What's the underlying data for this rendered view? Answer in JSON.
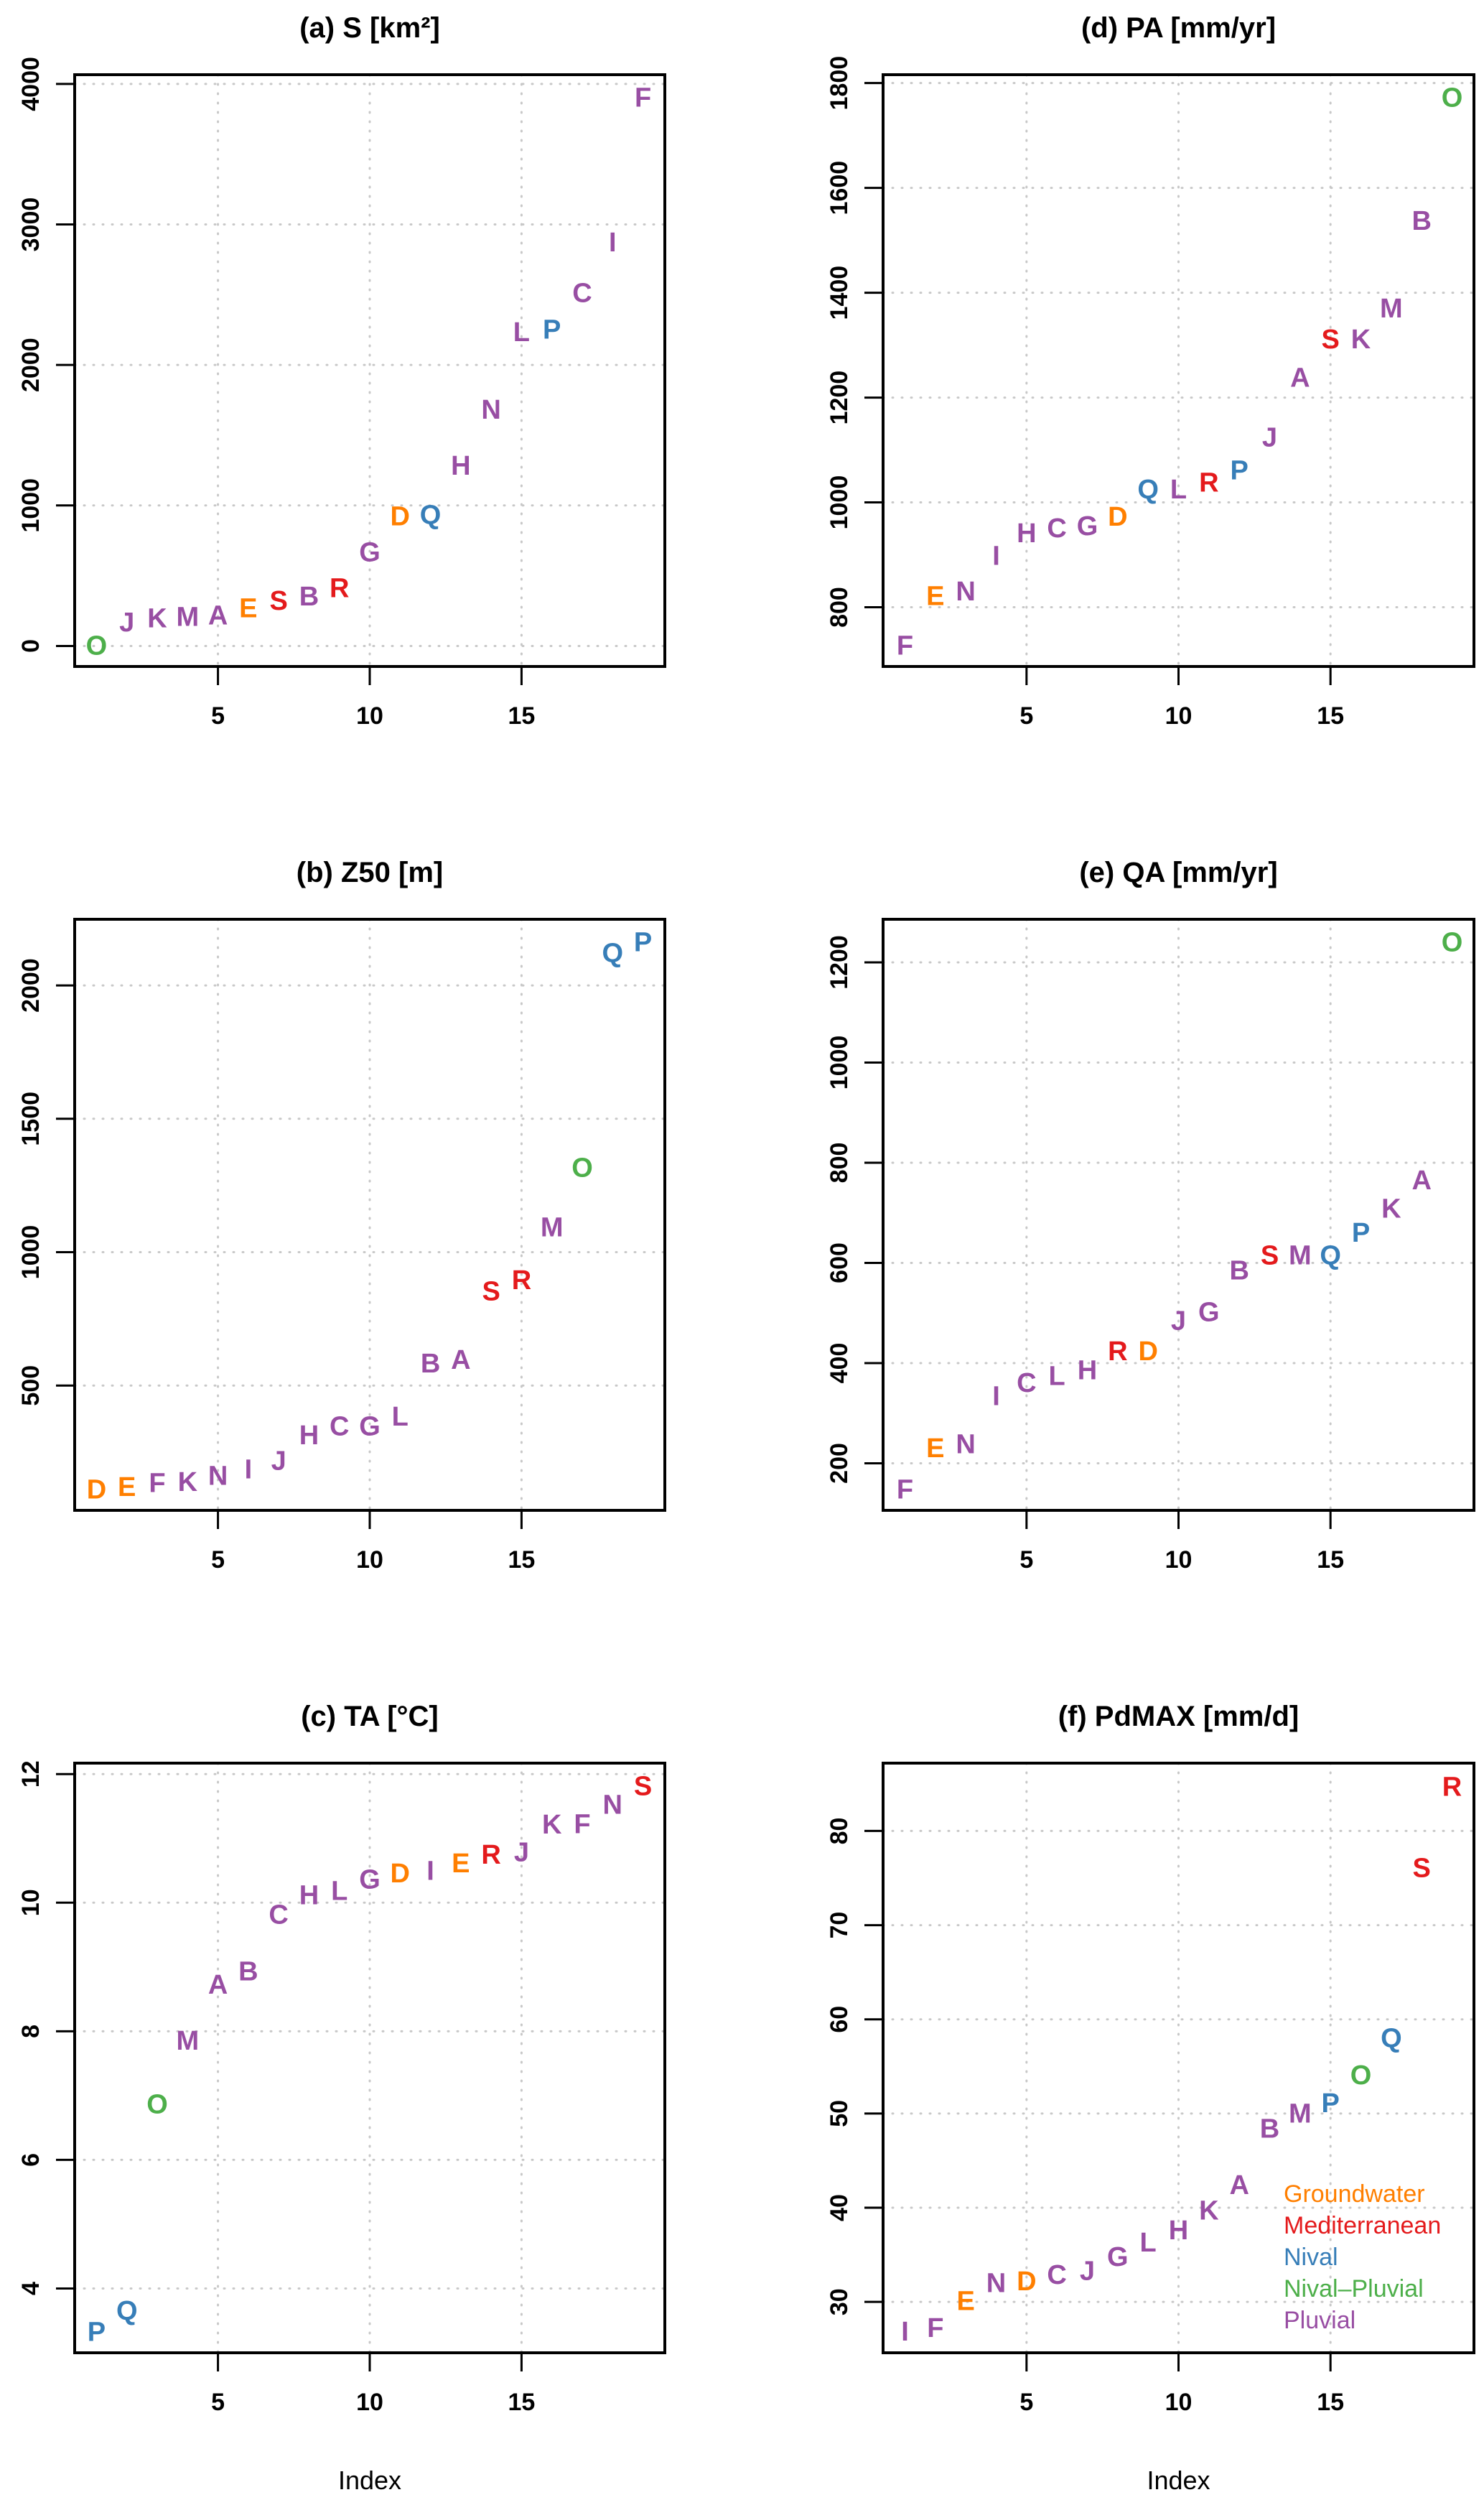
{
  "categories": {
    "Groundwater": "#FF7F00",
    "Mediterranean": "#E41A1C",
    "Nival": "#377EB8",
    "Nival-Pluvial": "#4DAF4A",
    "Pluvial": "#984EA3"
  },
  "catchment_regime": {
    "A": "Pluvial",
    "B": "Pluvial",
    "C": "Pluvial",
    "D": "Groundwater",
    "E": "Groundwater",
    "F": "Pluvial",
    "G": "Pluvial",
    "H": "Pluvial",
    "I": "Pluvial",
    "J": "Pluvial",
    "K": "Pluvial",
    "L": "Pluvial",
    "M": "Pluvial",
    "N": "Pluvial",
    "O": "Nival-Pluvial",
    "P": "Nival",
    "Q": "Nival",
    "R": "Mediterranean",
    "S": "Mediterranean"
  },
  "chart_data": [
    {
      "id": "a",
      "type": "scatter",
      "title": "(a)  S [km²]",
      "xlabel": "",
      "ylabel": "",
      "xlim": [
        0.28,
        19.72
      ],
      "ylim": [
        -146,
        4066
      ],
      "xticks": [
        5,
        10,
        15
      ],
      "yticks": [
        0,
        1000,
        2000,
        3000,
        4000
      ],
      "grid": true,
      "points": [
        {
          "x": 1,
          "label": "O",
          "y": 10
        },
        {
          "x": 2,
          "label": "J",
          "y": 175
        },
        {
          "x": 3,
          "label": "K",
          "y": 205
        },
        {
          "x": 4,
          "label": "M",
          "y": 215
        },
        {
          "x": 5,
          "label": "A",
          "y": 225
        },
        {
          "x": 6,
          "label": "E",
          "y": 275
        },
        {
          "x": 7,
          "label": "S",
          "y": 330
        },
        {
          "x": 8,
          "label": "B",
          "y": 360
        },
        {
          "x": 9,
          "label": "R",
          "y": 420
        },
        {
          "x": 10,
          "label": "G",
          "y": 675
        },
        {
          "x": 11,
          "label": "D",
          "y": 930
        },
        {
          "x": 12,
          "label": "Q",
          "y": 940
        },
        {
          "x": 13,
          "label": "H",
          "y": 1290
        },
        {
          "x": 14,
          "label": "N",
          "y": 1690
        },
        {
          "x": 15,
          "label": "L",
          "y": 2240
        },
        {
          "x": 16,
          "label": "P",
          "y": 2260
        },
        {
          "x": 17,
          "label": "C",
          "y": 2520
        },
        {
          "x": 18,
          "label": "I",
          "y": 2880
        },
        {
          "x": 19,
          "label": "F",
          "y": 3910
        }
      ]
    },
    {
      "id": "b",
      "type": "scatter",
      "title": "(b)  Z50 [m]",
      "xlabel": "",
      "ylabel": "",
      "xlim": [
        0.28,
        19.72
      ],
      "ylim": [
        32,
        2248
      ],
      "xticks": [
        5,
        10,
        15
      ],
      "yticks": [
        500,
        1000,
        1500,
        2000
      ],
      "grid": true,
      "points": [
        {
          "x": 1,
          "label": "D",
          "y": 114
        },
        {
          "x": 2,
          "label": "E",
          "y": 124
        },
        {
          "x": 3,
          "label": "F",
          "y": 139
        },
        {
          "x": 4,
          "label": "K",
          "y": 143
        },
        {
          "x": 5,
          "label": "N",
          "y": 165
        },
        {
          "x": 6,
          "label": "I",
          "y": 190
        },
        {
          "x": 7,
          "label": "J",
          "y": 222
        },
        {
          "x": 8,
          "label": "H",
          "y": 317
        },
        {
          "x": 9,
          "label": "C",
          "y": 351
        },
        {
          "x": 10,
          "label": "G",
          "y": 351
        },
        {
          "x": 11,
          "label": "L",
          "y": 388
        },
        {
          "x": 12,
          "label": "B",
          "y": 587
        },
        {
          "x": 13,
          "label": "A",
          "y": 600
        },
        {
          "x": 14,
          "label": "S",
          "y": 857
        },
        {
          "x": 15,
          "label": "R",
          "y": 899
        },
        {
          "x": 16,
          "label": "M",
          "y": 1097
        },
        {
          "x": 17,
          "label": "O",
          "y": 1320
        },
        {
          "x": 18,
          "label": "Q",
          "y": 2125
        },
        {
          "x": 19,
          "label": "P",
          "y": 2166
        }
      ]
    },
    {
      "id": "c",
      "type": "scatter",
      "title": "(c)  TA [°C]",
      "xlabel": "Index",
      "ylabel": "",
      "xlim": [
        0.28,
        19.72
      ],
      "ylim": [
        3.0,
        12.17
      ],
      "xticks": [
        5,
        10,
        15
      ],
      "yticks": [
        4,
        6,
        8,
        10,
        12
      ],
      "grid": true,
      "points": [
        {
          "x": 1,
          "label": "P",
          "y": 3.34
        },
        {
          "x": 2,
          "label": "Q",
          "y": 3.67
        },
        {
          "x": 3,
          "label": "O",
          "y": 6.88
        },
        {
          "x": 4,
          "label": "M",
          "y": 7.87
        },
        {
          "x": 5,
          "label": "A",
          "y": 8.74
        },
        {
          "x": 6,
          "label": "B",
          "y": 8.95
        },
        {
          "x": 7,
          "label": "C",
          "y": 9.83
        },
        {
          "x": 8,
          "label": "H",
          "y": 10.13
        },
        {
          "x": 9,
          "label": "L",
          "y": 10.2
        },
        {
          "x": 10,
          "label": "G",
          "y": 10.38
        },
        {
          "x": 11,
          "label": "D",
          "y": 10.47
        },
        {
          "x": 12,
          "label": "I",
          "y": 10.51
        },
        {
          "x": 13,
          "label": "E",
          "y": 10.63
        },
        {
          "x": 14,
          "label": "R",
          "y": 10.76
        },
        {
          "x": 15,
          "label": "J",
          "y": 10.8
        },
        {
          "x": 16,
          "label": "K",
          "y": 11.23
        },
        {
          "x": 17,
          "label": "F",
          "y": 11.24
        },
        {
          "x": 18,
          "label": "N",
          "y": 11.54
        },
        {
          "x": 19,
          "label": "S",
          "y": 11.83
        }
      ]
    },
    {
      "id": "d",
      "type": "scatter",
      "title": "(d)  PA [mm/yr]",
      "xlabel": "",
      "ylabel": "",
      "xlim": [
        0.28,
        19.72
      ],
      "ylim": [
        687,
        1816
      ],
      "xticks": [
        5,
        10,
        15
      ],
      "yticks": [
        800,
        1000,
        1200,
        1400,
        1600,
        1800
      ],
      "grid": true,
      "points": [
        {
          "x": 1,
          "label": "F",
          "y": 729
        },
        {
          "x": 2,
          "label": "E",
          "y": 823
        },
        {
          "x": 3,
          "label": "N",
          "y": 832
        },
        {
          "x": 4,
          "label": "I",
          "y": 900
        },
        {
          "x": 5,
          "label": "H",
          "y": 943
        },
        {
          "x": 6,
          "label": "C",
          "y": 953
        },
        {
          "x": 7,
          "label": "G",
          "y": 957
        },
        {
          "x": 8,
          "label": "D",
          "y": 975
        },
        {
          "x": 9,
          "label": "Q",
          "y": 1027
        },
        {
          "x": 10,
          "label": "L",
          "y": 1027
        },
        {
          "x": 11,
          "label": "R",
          "y": 1040
        },
        {
          "x": 12,
          "label": "P",
          "y": 1063
        },
        {
          "x": 13,
          "label": "J",
          "y": 1126
        },
        {
          "x": 14,
          "label": "A",
          "y": 1240
        },
        {
          "x": 15,
          "label": "S",
          "y": 1313
        },
        {
          "x": 16,
          "label": "K",
          "y": 1313
        },
        {
          "x": 17,
          "label": "M",
          "y": 1372
        },
        {
          "x": 18,
          "label": "B",
          "y": 1539
        },
        {
          "x": 19,
          "label": "O",
          "y": 1774
        }
      ]
    },
    {
      "id": "e",
      "type": "scatter",
      "title": "(e)  QA [mm/yr]",
      "xlabel": "",
      "ylabel": "",
      "xlim": [
        0.28,
        19.72
      ],
      "ylim": [
        106,
        1286
      ],
      "xticks": [
        5,
        10,
        15
      ],
      "yticks": [
        200,
        400,
        600,
        800,
        1000,
        1200
      ],
      "grid": true,
      "points": [
        {
          "x": 1,
          "label": "F",
          "y": 150
        },
        {
          "x": 2,
          "label": "E",
          "y": 232
        },
        {
          "x": 3,
          "label": "N",
          "y": 240
        },
        {
          "x": 4,
          "label": "I",
          "y": 336
        },
        {
          "x": 5,
          "label": "C",
          "y": 363
        },
        {
          "x": 6,
          "label": "L",
          "y": 376
        },
        {
          "x": 7,
          "label": "H",
          "y": 388
        },
        {
          "x": 8,
          "label": "R",
          "y": 426
        },
        {
          "x": 9,
          "label": "D",
          "y": 426
        },
        {
          "x": 10,
          "label": "J",
          "y": 487
        },
        {
          "x": 11,
          "label": "G",
          "y": 504
        },
        {
          "x": 12,
          "label": "B",
          "y": 587
        },
        {
          "x": 13,
          "label": "S",
          "y": 617
        },
        {
          "x": 14,
          "label": "M",
          "y": 617
        },
        {
          "x": 15,
          "label": "Q",
          "y": 617
        },
        {
          "x": 16,
          "label": "P",
          "y": 662
        },
        {
          "x": 17,
          "label": "K",
          "y": 710
        },
        {
          "x": 18,
          "label": "A",
          "y": 767
        },
        {
          "x": 19,
          "label": "O",
          "y": 1242
        }
      ]
    },
    {
      "id": "f",
      "type": "scatter",
      "title": "(f)  PdMAX [mm/d]",
      "xlabel": "Index",
      "ylabel": "",
      "xlim": [
        0.28,
        19.72
      ],
      "ylim": [
        24.6,
        87.2
      ],
      "xticks": [
        5,
        10,
        15
      ],
      "yticks": [
        30,
        40,
        50,
        60,
        70,
        80
      ],
      "grid": true,
      "legend": {
        "position": "bottom-right",
        "entries": [
          "Groundwater",
          "Mediterranean",
          "Nival",
          "Nival–Pluvial",
          "Pluvial"
        ]
      },
      "points": [
        {
          "x": 1,
          "label": "I",
          "y": 26.95
        },
        {
          "x": 2,
          "label": "F",
          "y": 27.35
        },
        {
          "x": 3,
          "label": "E",
          "y": 30.2
        },
        {
          "x": 4,
          "label": "N",
          "y": 32.1
        },
        {
          "x": 5,
          "label": "D",
          "y": 32.3
        },
        {
          "x": 6,
          "label": "C",
          "y": 33.0
        },
        {
          "x": 7,
          "label": "J",
          "y": 33.4
        },
        {
          "x": 8,
          "label": "G",
          "y": 34.9
        },
        {
          "x": 9,
          "label": "L",
          "y": 36.4
        },
        {
          "x": 10,
          "label": "H",
          "y": 37.7
        },
        {
          "x": 11,
          "label": "K",
          "y": 39.8
        },
        {
          "x": 12,
          "label": "A",
          "y": 42.5
        },
        {
          "x": 13,
          "label": "B",
          "y": 48.5
        },
        {
          "x": 14,
          "label": "M",
          "y": 50.1
        },
        {
          "x": 15,
          "label": "P",
          "y": 51.2
        },
        {
          "x": 16,
          "label": "O",
          "y": 54.2
        },
        {
          "x": 17,
          "label": "Q",
          "y": 58.1
        },
        {
          "x": 18,
          "label": "S",
          "y": 76.2
        },
        {
          "x": 19,
          "label": "R",
          "y": 84.8
        }
      ]
    }
  ]
}
